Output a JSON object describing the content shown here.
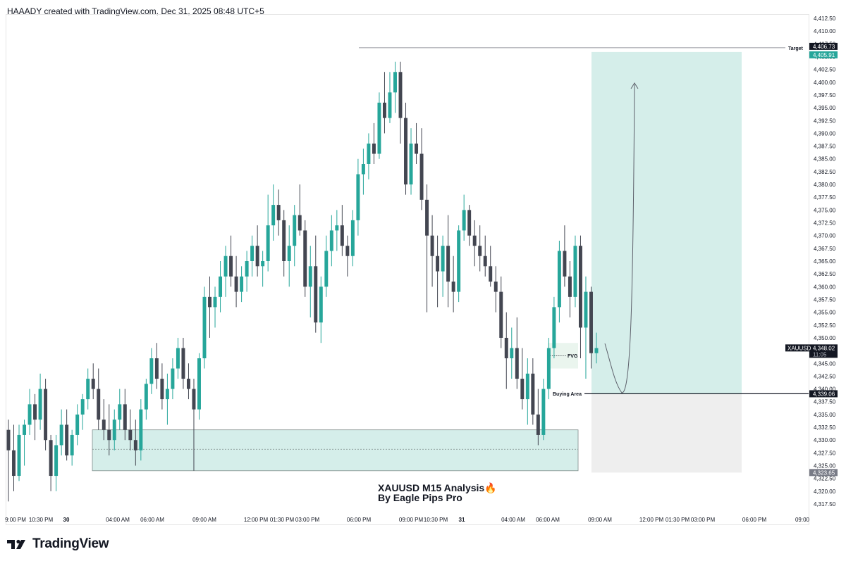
{
  "header": {
    "attribution": "HAAADY created with TradingView.com, Dec 31, 2025 08:48 UTC+5"
  },
  "footer": {
    "brand": "TradingView"
  },
  "chart_data": {
    "type": "candlestick",
    "symbol": "XAUUSD",
    "timeframe": "M15",
    "title_lines": [
      "XAUUSD M15 Analysis🔥",
      "By Eagle Pips Pro"
    ],
    "y_ticks": [
      "4,412.50",
      "4,410.00",
      "4,407.50",
      "4,405.00",
      "4,402.50",
      "4,400.00",
      "4,397.50",
      "4,395.00",
      "4,392.50",
      "4,390.00",
      "4,387.50",
      "4,385.00",
      "4,382.50",
      "4,380.00",
      "4,377.50",
      "4,375.00",
      "4,372.50",
      "4,370.00",
      "4,367.50",
      "4,365.00",
      "4,362.50",
      "4,360.00",
      "4,357.50",
      "4,355.00",
      "4,352.50",
      "4,350.00",
      "4,347.50",
      "4,345.00",
      "4,342.50",
      "4,340.00",
      "4,337.50",
      "4,335.00",
      "4,332.50",
      "4,330.00",
      "4,327.50",
      "4,325.00",
      "4,322.50",
      "4,320.00",
      "4,317.50"
    ],
    "y_range": [
      4315.5,
      4414.5
    ],
    "x_ticks": [
      "9:00 PM",
      "10:30 PM",
      "30",
      "04:00 AM",
      "06:00 AM",
      "09:00 AM",
      "12:00 PM",
      "01:30 PM",
      "03:00 PM",
      "06:00 PM",
      "09:00 PM",
      "10:30 PM",
      "31",
      "04:00 AM",
      "06:00 AM",
      "09:00 AM",
      "12:00 PM",
      "01:30 PM",
      "03:00 PM",
      "06:00 PM",
      "09:00"
    ],
    "price_labels": {
      "target": "4,406.73",
      "target_zone_top": "4,405.91",
      "current": "4,348.02",
      "countdown": "11:05",
      "buy": "4,339.06",
      "stop": "4,323.65"
    },
    "levels": {
      "target": 4406.73,
      "target_zone_top": 4405.91,
      "current": 4348.02,
      "buy": 4339.06,
      "stop": 4323.65
    },
    "annotations": {
      "target": "Target",
      "fvg": "FVG",
      "buy": "Buying Area",
      "symbol_tag": "XAUUSD"
    },
    "demand_zone": {
      "top": 4332.0,
      "bottom": 4324.0,
      "mid": 4328.2
    },
    "fvg_zone": {
      "top": 4349.0,
      "bottom": 4344.0
    },
    "colors": {
      "up": "#26a69a",
      "down": "#434651",
      "zone": "#d5eeea",
      "zone_border": "#7d8b89",
      "stop_zone": "#eeeeee",
      "target_zone": "#d5eeea",
      "line": "#131722"
    },
    "candles": [
      [
        4332,
        4334,
        4318,
        4328
      ],
      [
        4328,
        4333,
        4320,
        4323
      ],
      [
        4323,
        4333,
        4322,
        4331
      ],
      [
        4331,
        4334,
        4325,
        4333
      ],
      [
        4333,
        4340,
        4331,
        4337
      ],
      [
        4337,
        4339,
        4330,
        4334
      ],
      [
        4334,
        4343,
        4332,
        4340
      ],
      [
        4340,
        4342,
        4328,
        4330
      ],
      [
        4330,
        4331,
        4320,
        4323
      ],
      [
        4323,
        4331,
        4320,
        4329
      ],
      [
        4329,
        4336,
        4327,
        4333
      ],
      [
        4333,
        4336,
        4326,
        4327
      ],
      [
        4327,
        4332,
        4325,
        4331
      ],
      [
        4331,
        4337,
        4329,
        4335
      ],
      [
        4335,
        4339,
        4332,
        4338
      ],
      [
        4338,
        4344,
        4336,
        4342
      ],
      [
        4342,
        4345,
        4338,
        4340
      ],
      [
        4340,
        4344,
        4332,
        4334
      ],
      [
        4334,
        4338,
        4330,
        4332
      ],
      [
        4332,
        4337,
        4327,
        4330
      ],
      [
        4330,
        4336,
        4328,
        4334
      ],
      [
        4334,
        4340,
        4332,
        4337
      ],
      [
        4337,
        4340,
        4330,
        4332
      ],
      [
        4332,
        4336,
        4328,
        4330
      ],
      [
        4330,
        4334,
        4325,
        4328
      ],
      [
        4328,
        4338,
        4326,
        4336
      ],
      [
        4336,
        4342,
        4334,
        4341
      ],
      [
        4341,
        4348,
        4339,
        4346
      ],
      [
        4346,
        4349,
        4340,
        4342
      ],
      [
        4342,
        4345,
        4336,
        4338
      ],
      [
        4338,
        4343,
        4333,
        4340
      ],
      [
        4340,
        4346,
        4338,
        4344
      ],
      [
        4344,
        4350,
        4342,
        4348
      ],
      [
        4348,
        4350,
        4340,
        4342
      ],
      [
        4342,
        4345,
        4338,
        4340
      ],
      [
        4340,
        4342,
        4324,
        4336
      ],
      [
        4336,
        4347,
        4334,
        4346
      ],
      [
        4346,
        4360,
        4344,
        4358
      ],
      [
        4358,
        4362,
        4350,
        4356
      ],
      [
        4356,
        4360,
        4352,
        4358
      ],
      [
        4358,
        4365,
        4355,
        4362
      ],
      [
        4362,
        4368,
        4358,
        4366
      ],
      [
        4366,
        4370,
        4360,
        4362
      ],
      [
        4362,
        4366,
        4356,
        4359
      ],
      [
        4359,
        4364,
        4357,
        4362
      ],
      [
        4362,
        4367,
        4359,
        4365
      ],
      [
        4365,
        4370,
        4362,
        4368
      ],
      [
        4368,
        4372,
        4362,
        4364
      ],
      [
        4364,
        4367,
        4360,
        4365
      ],
      [
        4365,
        4378,
        4363,
        4372
      ],
      [
        4372,
        4380,
        4369,
        4376
      ],
      [
        4376,
        4379,
        4370,
        4373
      ],
      [
        4373,
        4375,
        4362,
        4365
      ],
      [
        4365,
        4372,
        4360,
        4368
      ],
      [
        4368,
        4376,
        4364,
        4374
      ],
      [
        4374,
        4380,
        4370,
        4371
      ],
      [
        4371,
        4373,
        4358,
        4360
      ],
      [
        4360,
        4368,
        4354,
        4364
      ],
      [
        4364,
        4370,
        4351,
        4353
      ],
      [
        4353,
        4362,
        4349,
        4360
      ],
      [
        4360,
        4370,
        4358,
        4367
      ],
      [
        4367,
        4374,
        4364,
        4371
      ],
      [
        4371,
        4375,
        4367,
        4372
      ],
      [
        4372,
        4376,
        4366,
        4368
      ],
      [
        4368,
        4370,
        4362,
        4366
      ],
      [
        4366,
        4375,
        4364,
        4373
      ],
      [
        4373,
        4385,
        4370,
        4382
      ],
      [
        4382,
        4387,
        4378,
        4384
      ],
      [
        4384,
        4390,
        4381,
        4388
      ],
      [
        4388,
        4392,
        4384,
        4386
      ],
      [
        4386,
        4398,
        4385,
        4396
      ],
      [
        4396,
        4402,
        4390,
        4393
      ],
      [
        4393,
        4402,
        4392,
        4398
      ],
      [
        4398,
        4404,
        4394,
        4402
      ],
      [
        4402,
        4404,
        4388,
        4393
      ],
      [
        4393,
        4396,
        4378,
        4380
      ],
      [
        4380,
        4391,
        4378,
        4388
      ],
      [
        4388,
        4392,
        4384,
        4386
      ],
      [
        4386,
        4391,
        4375,
        4377
      ],
      [
        4377,
        4380,
        4355,
        4370
      ],
      [
        4370,
        4374,
        4360,
        4366
      ],
      [
        4366,
        4370,
        4356,
        4363
      ],
      [
        4363,
        4370,
        4358,
        4368
      ],
      [
        4368,
        4374,
        4356,
        4361
      ],
      [
        4361,
        4366,
        4355,
        4359
      ],
      [
        4359,
        4372,
        4357,
        4371
      ],
      [
        4371,
        4378,
        4369,
        4375
      ],
      [
        4375,
        4376,
        4368,
        4370
      ],
      [
        4370,
        4373,
        4364,
        4368
      ],
      [
        4368,
        4372,
        4363,
        4366
      ],
      [
        4366,
        4370,
        4362,
        4364
      ],
      [
        4364,
        4368,
        4360,
        4361
      ],
      [
        4361,
        4364,
        4355,
        4359
      ],
      [
        4359,
        4362,
        4348,
        4350
      ],
      [
        4350,
        4355,
        4340,
        4346
      ],
      [
        4346,
        4352,
        4342,
        4348
      ],
      [
        4348,
        4354,
        4340,
        4342
      ],
      [
        4342,
        4348,
        4336,
        4338
      ],
      [
        4338,
        4346,
        4333,
        4343
      ],
      [
        4343,
        4346,
        4333,
        4335
      ],
      [
        4335,
        4340,
        4329,
        4331
      ],
      [
        4331,
        4342,
        4330,
        4340
      ],
      [
        4340,
        4350,
        4338,
        4348
      ],
      [
        4348,
        4358,
        4346,
        4356
      ],
      [
        4356,
        4369,
        4353,
        4367
      ],
      [
        4367,
        4372,
        4360,
        4362
      ],
      [
        4362,
        4365,
        4354,
        4358
      ],
      [
        4358,
        4370,
        4356,
        4368
      ],
      [
        4368,
        4370,
        4346,
        4352
      ],
      [
        4352,
        4362,
        4342,
        4359
      ],
      [
        4359,
        4360,
        4344,
        4347
      ],
      [
        4347,
        4351,
        4345,
        4348
      ]
    ]
  }
}
